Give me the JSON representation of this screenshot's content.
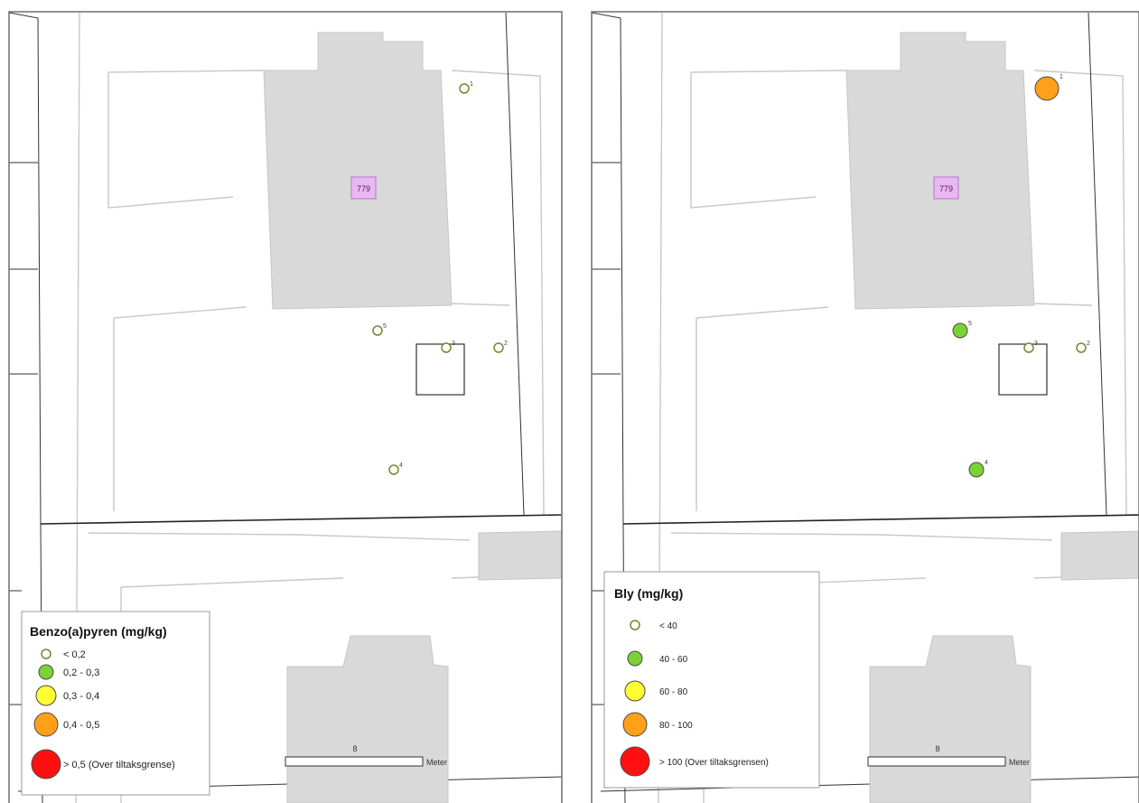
{
  "maps": [
    {
      "id": "left",
      "legend_title": "Benzo(a)pyren (mg/kg)",
      "legend_classes": [
        {
          "label": "< 0,2",
          "color": "#ffffff"
        },
        {
          "label": "0,2 - 0,3",
          "color": "#7bd235"
        },
        {
          "label": "0,3 - 0,4",
          "color": "#ffff33"
        },
        {
          "label": "0,4 - 0,5",
          "color": "#ff9f1a"
        },
        {
          "label": "> 0,5 (Over tiltaksgrense)",
          "color": "#ff1010"
        }
      ],
      "points": [
        {
          "id": "1",
          "class": 0
        },
        {
          "id": "2",
          "class": 0
        },
        {
          "id": "3",
          "class": 0
        },
        {
          "id": "4",
          "class": 0
        },
        {
          "id": "5",
          "class": 0
        }
      ],
      "building_label": "779",
      "scale_value": "8",
      "scale_unit": "Meter"
    },
    {
      "id": "right",
      "legend_title": "Bly (mg/kg)",
      "legend_classes": [
        {
          "label": "< 40",
          "color": "#ffffff"
        },
        {
          "label": "40 - 60",
          "color": "#7bd235"
        },
        {
          "label": "60 - 80",
          "color": "#ffff33"
        },
        {
          "label": "80 - 100",
          "color": "#ff9f1a"
        },
        {
          "label": "> 100 (Over tiltaksgrensen)",
          "color": "#ff1010"
        }
      ],
      "points": [
        {
          "id": "1",
          "class": 3
        },
        {
          "id": "2",
          "class": 0
        },
        {
          "id": "3",
          "class": 0
        },
        {
          "id": "4",
          "class": 1
        },
        {
          "id": "5",
          "class": 1
        }
      ],
      "building_label": "779",
      "scale_value": "8",
      "scale_unit": "Meter"
    }
  ]
}
